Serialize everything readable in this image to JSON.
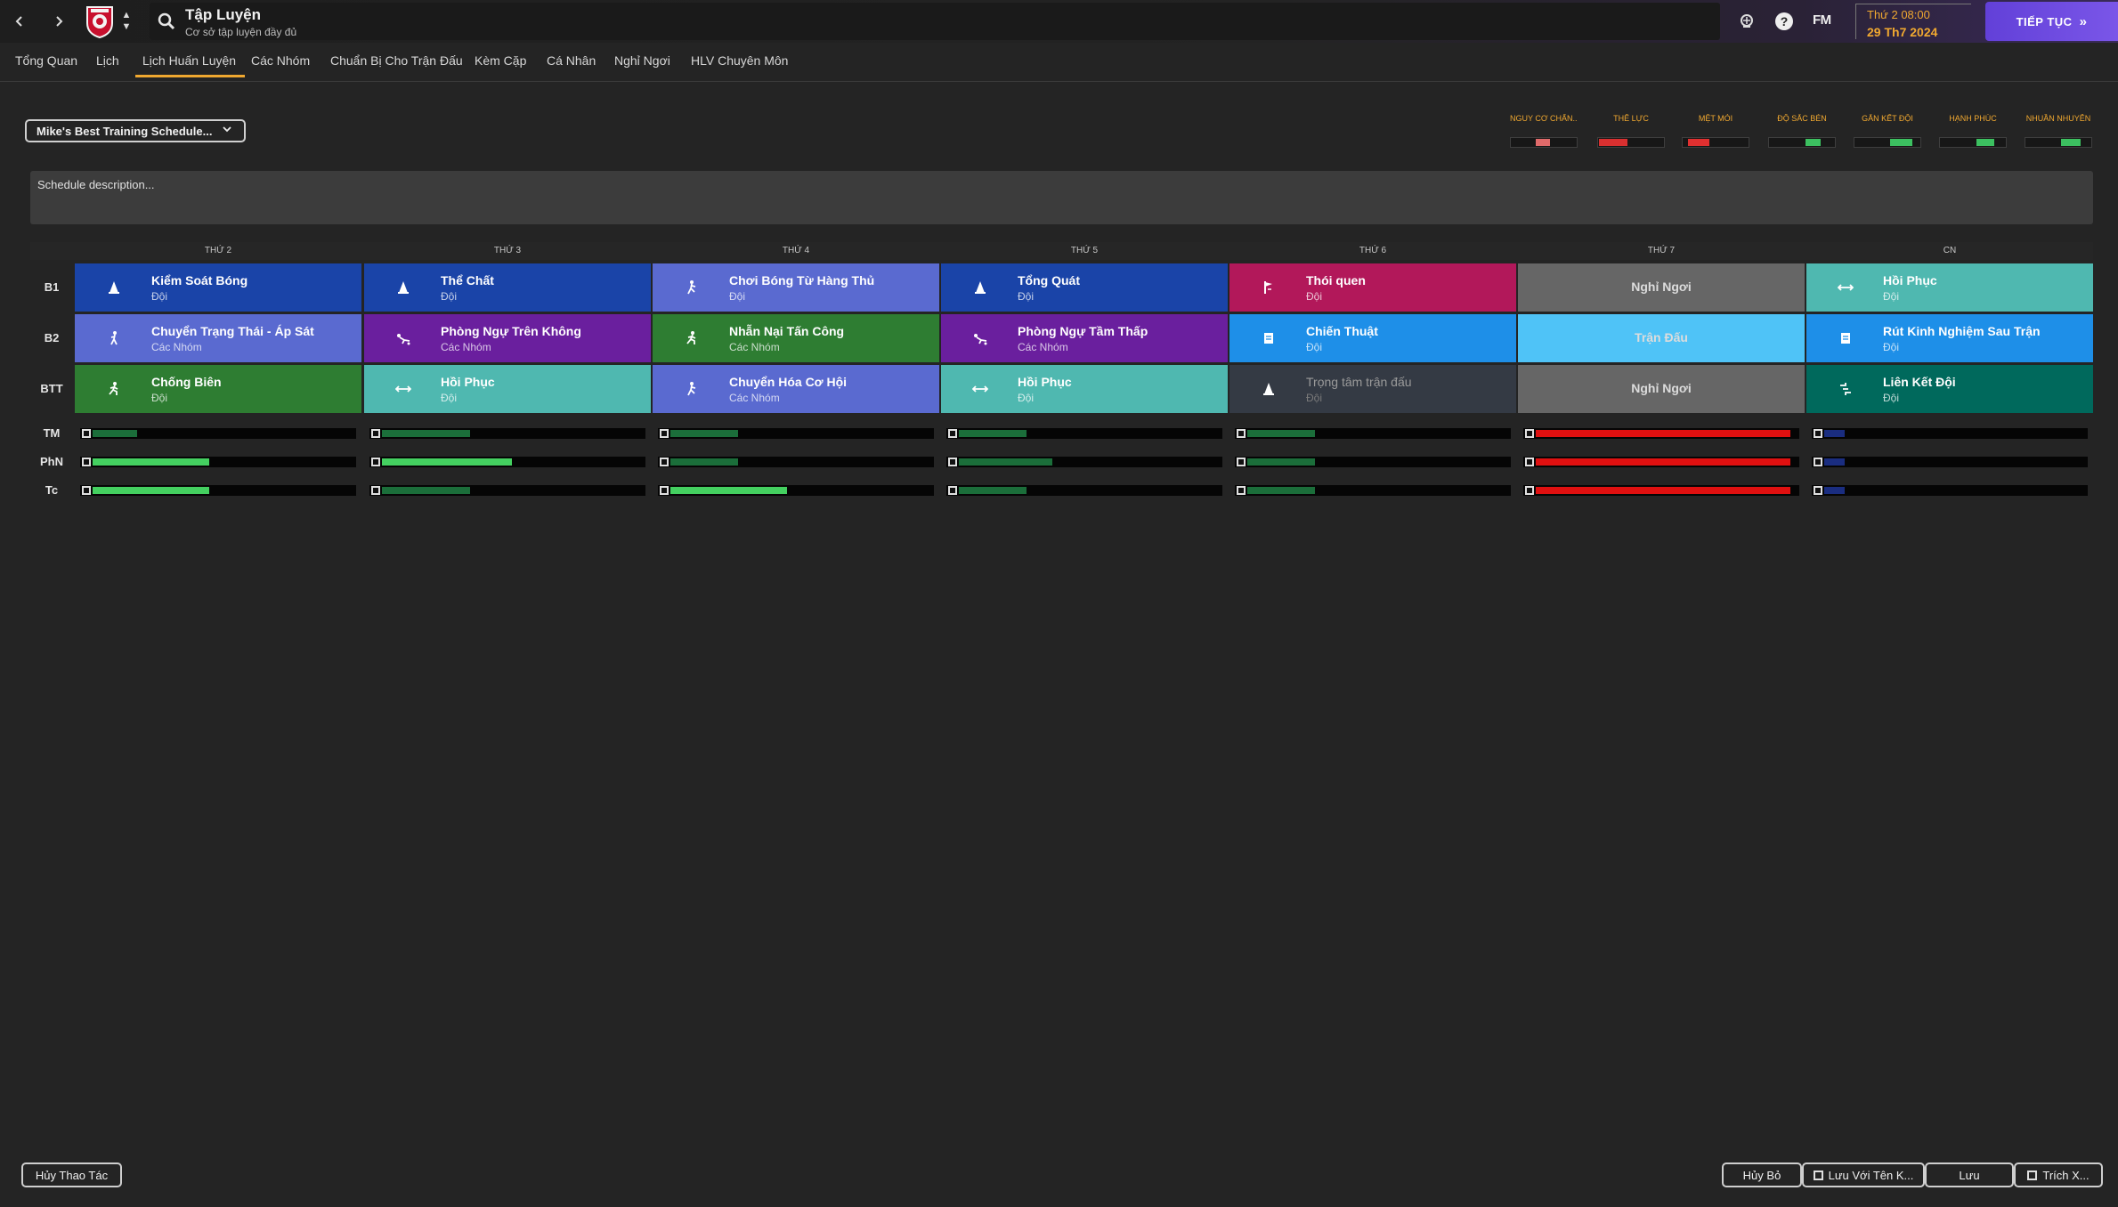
{
  "header": {
    "title": "Tập Luyện",
    "subtitle": "Cơ sở tập luyện đầy đủ",
    "fm_logo": "FM",
    "date_line1": "Thứ 2 08:00",
    "date_line2": "29 Th7 2024",
    "continue_label": "TIẾP TỤC",
    "icons": [
      "back-icon",
      "forward-icon",
      "club-badge",
      "search-icon",
      "network-icon",
      "help-icon"
    ]
  },
  "tabs": [
    {
      "label": "Tổng Quan"
    },
    {
      "label": "Lịch"
    },
    {
      "label": "Lịch Huấn Luyện",
      "active": true
    },
    {
      "label": "Các Nhóm"
    },
    {
      "label": "Chuẩn Bị Cho Trận Đấu"
    },
    {
      "label": "Kèm Cặp"
    },
    {
      "label": "Cá Nhân"
    },
    {
      "label": "Nghỉ Ngơi"
    },
    {
      "label": "HLV Chuyên Môn"
    }
  ],
  "schedule": {
    "selected": "Mike's Best Training Schedule...",
    "description_placeholder": "Schedule description..."
  },
  "indicators": [
    {
      "label": "NGUY CƠ CHẤN...",
      "level": 0.22,
      "color": "#e06a6a",
      "offset": 0.38
    },
    {
      "label": "THỂ LỰC",
      "level": 0.42,
      "color": "#d93030",
      "offset": 0.02
    },
    {
      "label": "MỆT MỎI",
      "level": 0.32,
      "color": "#e03030",
      "offset": 0.08
    },
    {
      "label": "ĐỘ SẮC BÉN",
      "level": 0.22,
      "color": "#3cc060",
      "offset": 0.56
    },
    {
      "label": "GẮN KẾT ĐỘI",
      "level": 0.34,
      "color": "#3cc060",
      "offset": 0.54
    },
    {
      "label": "HẠNH PHÚC",
      "level": 0.26,
      "color": "#3cc060",
      "offset": 0.56
    },
    {
      "label": "NHUẦN NHUYỄN",
      "level": 0.3,
      "color": "#3cc060",
      "offset": 0.54
    }
  ],
  "days": [
    "THỨ 2",
    "THỨ 3",
    "THỨ 4",
    "THỨ 5",
    "THỨ 6",
    "THỨ 7",
    "CN"
  ],
  "rows": [
    {
      "label": "B1",
      "cells": [
        {
          "title": "Kiểm Soát Bóng",
          "sub": "Đội",
          "color": "#1a44a8",
          "icon": "cone-icon"
        },
        {
          "title": "Thể Chất",
          "sub": "Đội",
          "color": "#1a44a8",
          "icon": "cone-icon"
        },
        {
          "title": "Chơi Bóng Từ Hàng Thủ",
          "sub": "Đội",
          "color": "#5a6ad0",
          "icon": "pass-icon"
        },
        {
          "title": "Tổng Quát",
          "sub": "Đội",
          "color": "#1a44a8",
          "icon": "cone-icon"
        },
        {
          "title": "Thói quen",
          "sub": "Đội",
          "color": "#b2185a",
          "icon": "flag-icon"
        },
        {
          "center": "Nghỉ Ngơi",
          "color": "#666666"
        },
        {
          "title": "Hồi Phục",
          "sub": "Đội",
          "color": "#4fb8b0",
          "icon": "recovery-icon"
        }
      ]
    },
    {
      "label": "B2",
      "cells": [
        {
          "title": "Chuyển Trạng Thái - Áp Sát",
          "sub": "Các Nhóm",
          "color": "#5a6ad0",
          "icon": "press-icon"
        },
        {
          "title": "Phòng Ngự Trên Không",
          "sub": "Các Nhóm",
          "color": "#6a1f9e",
          "icon": "tackle-icon"
        },
        {
          "title": "Nhẫn Nại Tấn Công",
          "sub": "Các Nhóm",
          "color": "#2e7d32",
          "icon": "run-icon"
        },
        {
          "title": "Phòng Ngự Tầm Thấp",
          "sub": "Các Nhóm",
          "color": "#6a1f9e",
          "icon": "tackle-icon"
        },
        {
          "title": "Chiến Thuật",
          "sub": "Đội",
          "color": "#1e8fe8",
          "icon": "board-icon"
        },
        {
          "center": "Trận Đấu",
          "color": "#4fc3f7"
        },
        {
          "title": "Rút Kinh Nghiệm Sau Trận",
          "sub": "Đội",
          "color": "#1e8fe8",
          "icon": "board-icon"
        }
      ]
    },
    {
      "label": "BTT",
      "cells": [
        {
          "title": "Chống Biên",
          "sub": "Đội",
          "color": "#2e7d32",
          "icon": "run-icon"
        },
        {
          "title": "Hồi Phục",
          "sub": "Đội",
          "color": "#4fb8b0",
          "icon": "recovery-icon"
        },
        {
          "title": "Chuyển Hóa Cơ Hội",
          "sub": "Các Nhóm",
          "color": "#5a6ad0",
          "icon": "pass-icon"
        },
        {
          "title": "Hồi Phục",
          "sub": "Đội",
          "color": "#4fb8b0",
          "icon": "recovery-icon"
        },
        {
          "title": "Trọng tâm trận đấu",
          "sub": "Đội",
          "color": "#343a44",
          "icon": "cone-icon",
          "muted": true
        },
        {
          "center": "Nghỉ Ngơi",
          "color": "#666666"
        },
        {
          "title": "Liên Kết Đội",
          "sub": "Đội",
          "color": "#00695c",
          "icon": "link-icon"
        }
      ]
    }
  ],
  "loads": [
    {
      "label": "TM",
      "values": [
        {
          "level": 0.17,
          "color": "#1b6e3a"
        },
        {
          "level": 0.34,
          "color": "#1b6e3a"
        },
        {
          "level": 0.26,
          "color": "#1b6e3a"
        },
        {
          "level": 0.26,
          "color": "#1b6e3a"
        },
        {
          "level": 0.26,
          "color": "#1b6e3a"
        },
        {
          "level": 0.98,
          "color": "#e01010"
        },
        {
          "level": 0.08,
          "color": "#1a2d80"
        }
      ]
    },
    {
      "label": "PhN",
      "values": [
        {
          "level": 0.45,
          "color": "#44d060"
        },
        {
          "level": 0.5,
          "color": "#44d060"
        },
        {
          "level": 0.26,
          "color": "#1b6e3a"
        },
        {
          "level": 0.36,
          "color": "#1b6e3a"
        },
        {
          "level": 0.26,
          "color": "#1b6e3a"
        },
        {
          "level": 0.98,
          "color": "#e01010"
        },
        {
          "level": 0.08,
          "color": "#1a2d80"
        }
      ]
    },
    {
      "label": "Tc",
      "values": [
        {
          "level": 0.45,
          "color": "#44d060"
        },
        {
          "level": 0.34,
          "color": "#1b6e3a"
        },
        {
          "level": 0.45,
          "color": "#44d060"
        },
        {
          "level": 0.26,
          "color": "#1b6e3a"
        },
        {
          "level": 0.26,
          "color": "#1b6e3a"
        },
        {
          "level": 0.98,
          "color": "#e01010"
        },
        {
          "level": 0.08,
          "color": "#1a2d80"
        }
      ]
    }
  ],
  "footer": {
    "undo": "Hủy Thao Tác",
    "cancel": "Hủy Bỏ",
    "save_as": "Lưu Với Tên K...",
    "save": "Lưu",
    "export": "Trích X..."
  }
}
